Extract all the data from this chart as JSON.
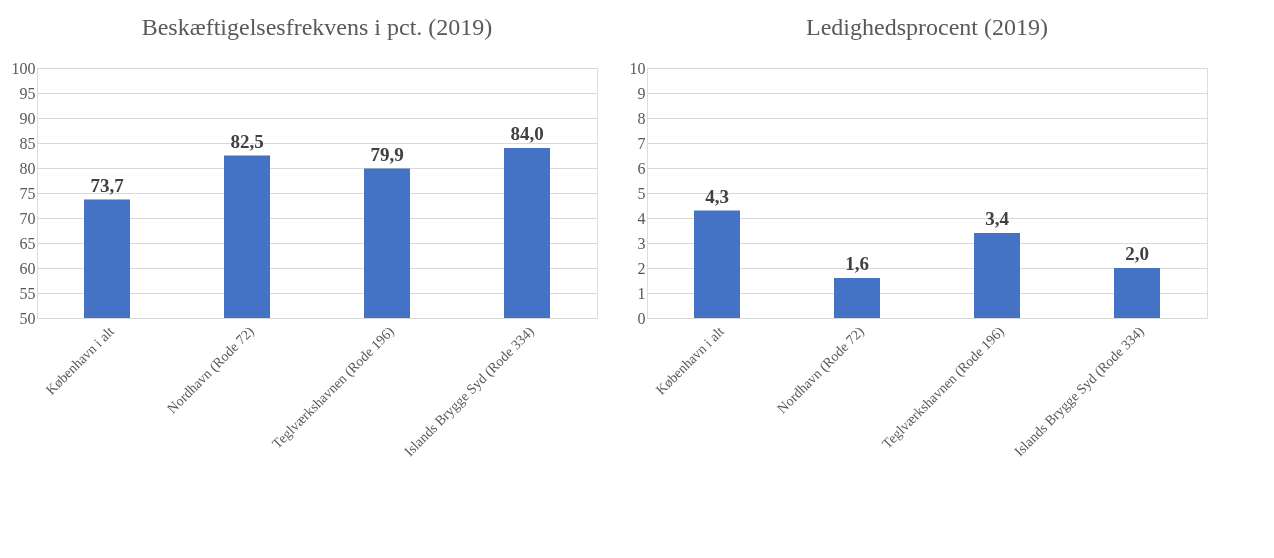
{
  "chart_data": [
    {
      "type": "bar",
      "title": "Beskæftigelsesfrekvens i pct.  (2019)",
      "categories": [
        "København i alt",
        "Nordhavn (Rode 72)",
        "Teglværkshavnen (Rode 196)",
        "Islands Brygge Syd (Rode 334)"
      ],
      "values": [
        73.7,
        82.5,
        79.9,
        84.0
      ],
      "value_labels": [
        "73,7",
        "82,5",
        "79,9",
        "84,0"
      ],
      "color": "#4472c4",
      "ylim": [
        50,
        100
      ],
      "yticks": [
        50,
        55,
        60,
        65,
        70,
        75,
        80,
        85,
        90,
        95,
        100
      ],
      "grid": "y"
    },
    {
      "type": "bar",
      "title": "Ledighedsprocent (2019)",
      "categories": [
        "København i alt",
        "Nordhavn (Rode 72)",
        "Teglværkshavnen (Rode 196)",
        "Islands Brygge Syd (Rode 334)"
      ],
      "values": [
        4.3,
        1.6,
        3.4,
        2.0
      ],
      "value_labels": [
        "4,3",
        "1,6",
        "3,4",
        "2,0"
      ],
      "color": "#4472c4",
      "ylim": [
        0,
        10
      ],
      "yticks": [
        0,
        1,
        2,
        3,
        4,
        5,
        6,
        7,
        8,
        9,
        10
      ],
      "grid": "y"
    }
  ]
}
